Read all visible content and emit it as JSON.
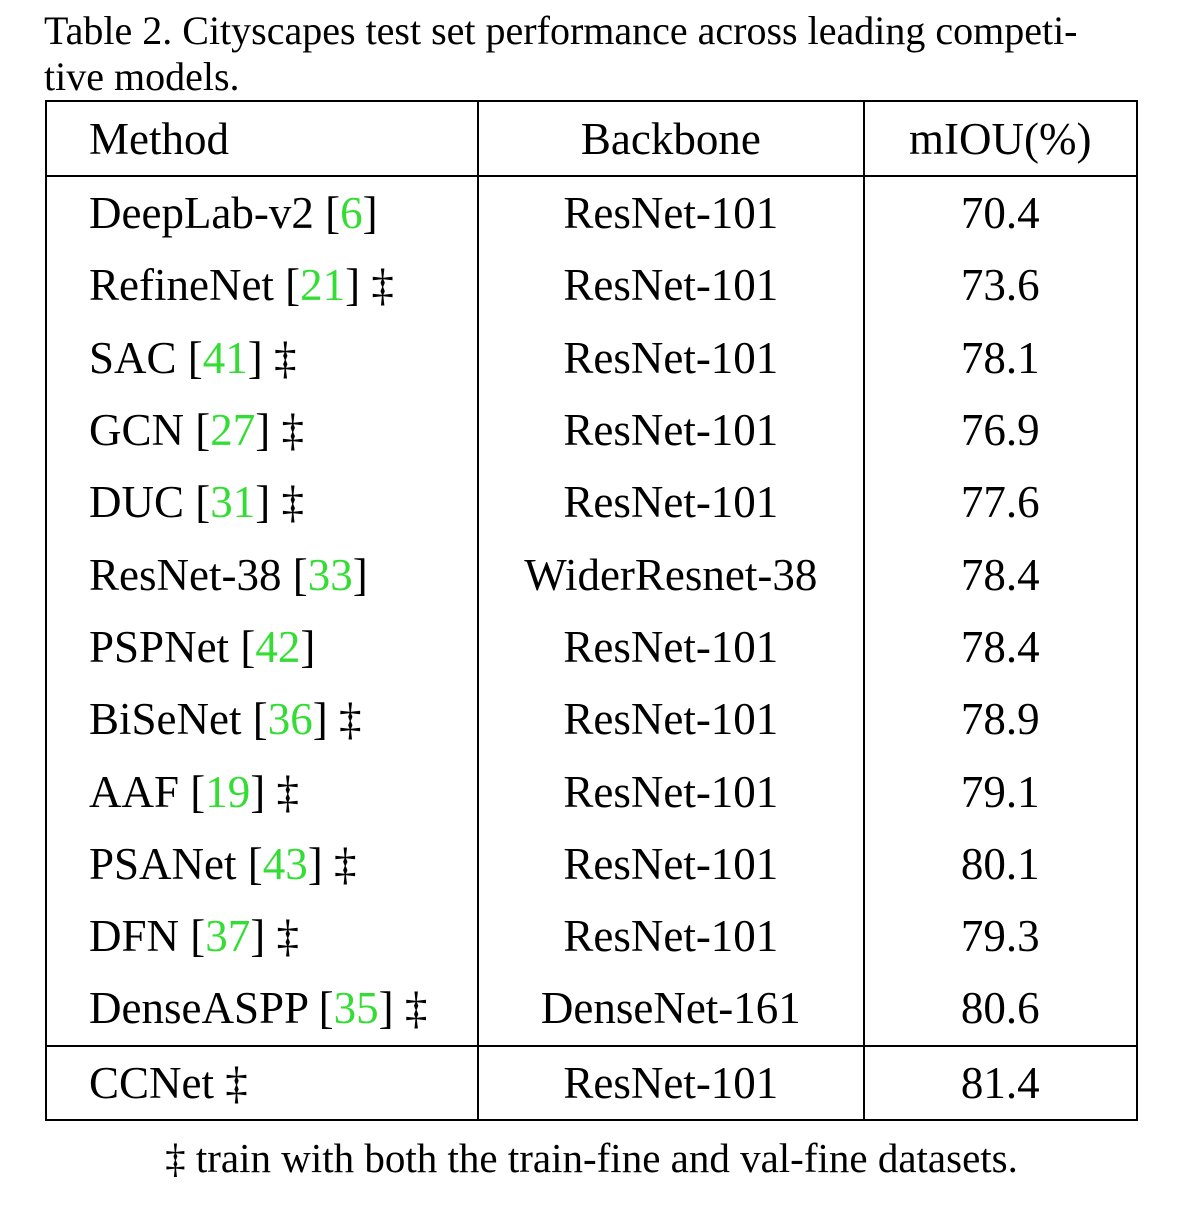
{
  "caption": "Table 2. Cityscapes test set performance across leading competi-tive models.",
  "caption_lines": [
    "Table 2. Cityscapes test set performance across leading competi-",
    "tive models."
  ],
  "table": {
    "headers": {
      "method": "Method",
      "backbone": "Backbone",
      "miou": "mIOU(%)"
    },
    "rows": [
      {
        "method": "DeepLab-v2",
        "ref": "6",
        "dagger": "",
        "backbone": "ResNet-101",
        "miou": "70.4"
      },
      {
        "method": "RefineNet",
        "ref": "21",
        "dagger": "‡",
        "backbone": "ResNet-101",
        "miou": "73.6"
      },
      {
        "method": "SAC",
        "ref": "41",
        "dagger": "‡",
        "backbone": "ResNet-101",
        "miou": "78.1"
      },
      {
        "method": "GCN",
        "ref": "27",
        "dagger": "‡",
        "backbone": "ResNet-101",
        "miou": "76.9"
      },
      {
        "method": "DUC",
        "ref": "31",
        "dagger": "‡",
        "backbone": "ResNet-101",
        "miou": "77.6"
      },
      {
        "method": "ResNet-38",
        "ref": "33",
        "dagger": "",
        "backbone": "WiderResnet-38",
        "miou": "78.4"
      },
      {
        "method": "PSPNet",
        "ref": "42",
        "dagger": "",
        "backbone": "ResNet-101",
        "miou": "78.4"
      },
      {
        "method": "BiSeNet",
        "ref": "36",
        "dagger": "‡",
        "backbone": "ResNet-101",
        "miou": "78.9"
      },
      {
        "method": "AAF",
        "ref": "19",
        "dagger": "‡",
        "backbone": "ResNet-101",
        "miou": "79.1"
      },
      {
        "method": "PSANet",
        "ref": "43",
        "dagger": "‡",
        "backbone": "ResNet-101",
        "miou": "80.1"
      },
      {
        "method": "DFN",
        "ref": "37",
        "dagger": "‡",
        "backbone": "ResNet-101",
        "miou": "79.3"
      },
      {
        "method": "DenseASPP",
        "ref": "35",
        "dagger": "‡",
        "backbone": "DenseNet-161",
        "miou": "80.6"
      }
    ],
    "ours": {
      "method": "CCNet",
      "dagger": "‡",
      "backbone": "ResNet-101",
      "miou": "81.4"
    }
  },
  "footnote": "‡ train with both the train-fine and val-fine datasets.",
  "colors": {
    "reference_link": "#33dd33",
    "text": "#000000",
    "background": "#ffffff"
  }
}
